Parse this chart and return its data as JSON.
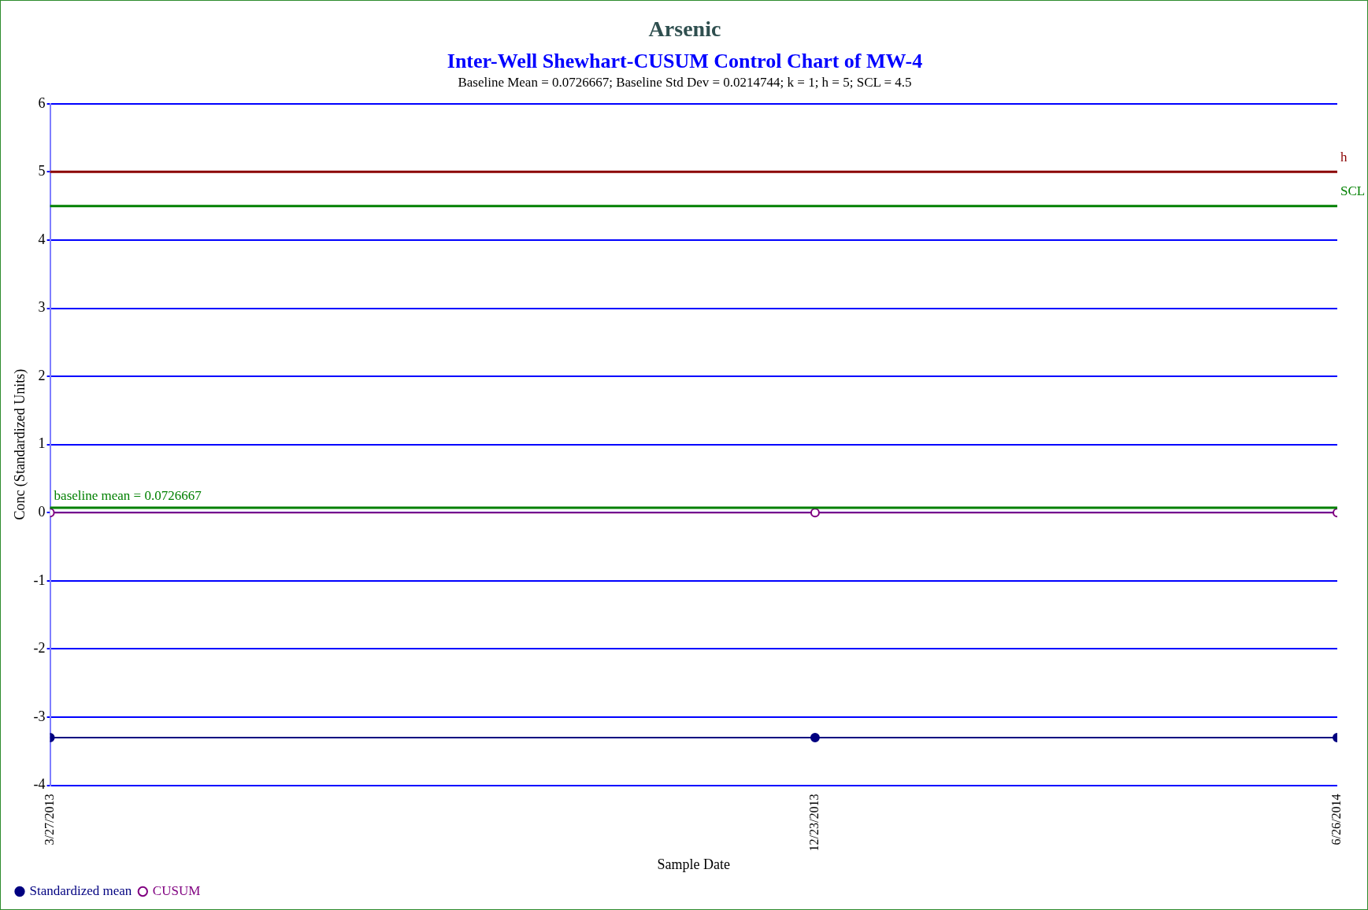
{
  "chart_data": {
    "type": "line",
    "title": "Arsenic",
    "subtitle": "Inter-Well Shewhart-CUSUM Control Chart of MW-4",
    "annotations": [
      "Baseline Mean = 0.0726667; Baseline Std Dev = 0.0214744; k = 1; h = 5; SCL = 4.5"
    ],
    "xlabel": "Sample Date",
    "ylabel": "Conc (Standardized Units)",
    "x": [
      "2013-03-27",
      "2013-12-23",
      "2014-06-26"
    ],
    "series": [
      {
        "name": "Standardized mean",
        "color": "#000080",
        "values": [
          -3.3,
          -3.3,
          -3.3
        ]
      },
      {
        "name": "CUSUM",
        "color": "#800080",
        "values": [
          0,
          0,
          0
        ]
      }
    ],
    "xlim": [
      "2013-03-27",
      "2014-06-26"
    ],
    "xticks": [
      {
        "value": "2013-03-27",
        "label": "3/27/2013"
      },
      {
        "value": "2013-12-23",
        "label": "12/23/2013"
      },
      {
        "value": "2014-06-26",
        "label": "6/26/2014"
      }
    ],
    "ylim": [
      -4,
      6
    ],
    "yticks": [
      -4,
      -3,
      -2,
      -1,
      0,
      1,
      2,
      3,
      4,
      5,
      6
    ],
    "ref_lines": [
      {
        "axis": "y",
        "value": 5,
        "label": "h",
        "color": "#8b0000"
      },
      {
        "axis": "y",
        "value": 4.5,
        "label": "SCL",
        "color": "#008000"
      },
      {
        "axis": "y",
        "value": 0.0726667,
        "label": "baseline mean = 0.0726667",
        "color": "#008000"
      }
    ],
    "grid": "y",
    "legend": "bottom left",
    "marker": "circle",
    "line_style": "solid"
  }
}
